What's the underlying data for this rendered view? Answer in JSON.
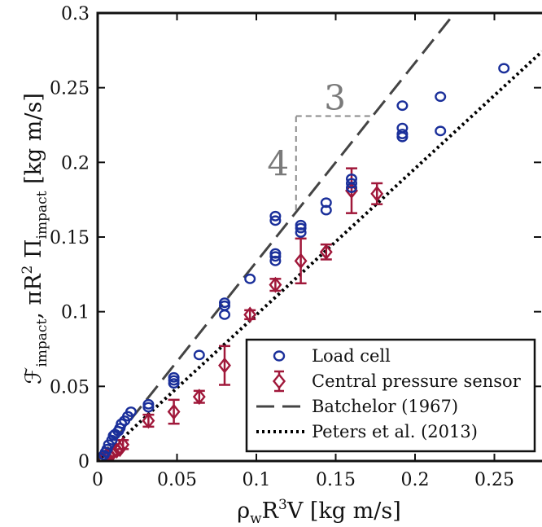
{
  "chart_data": {
    "type": "scatter",
    "title": "",
    "xlabel_parts": {
      "base": "ρ",
      "sub": "w",
      "mid": "R",
      "sup": "3",
      "tail": "V",
      "unit": "[kg m/s]"
    },
    "ylabel_parts": {
      "f": "ℱ",
      "f_sub": "impact",
      "comma": ", π",
      "r": "R",
      "r_sup": "2",
      "pi_cap": " Π",
      "pi_sub": "impact",
      "unit": "[kg m/s]"
    },
    "xlim": [
      0,
      0.28
    ],
    "ylim": [
      0,
      0.3
    ],
    "xticks": [
      0,
      0.05,
      0.1,
      0.15,
      0.2,
      0.25
    ],
    "xtick_labels": [
      "0",
      "0.05",
      "0.1",
      "0.15",
      "0.2",
      "0.25"
    ],
    "yticks": [
      0,
      0.05,
      0.1,
      0.15,
      0.2,
      0.25,
      0.3
    ],
    "ytick_labels": [
      "0",
      "0.05",
      "0.1",
      "0.15",
      "0.2",
      "0.25",
      "0.3"
    ],
    "grid": false,
    "legend_position": "bottom-right",
    "series": [
      {
        "name": "Load cell",
        "kind": "scatter",
        "marker": "circle",
        "color": "#1a2f9a",
        "points": [
          [
            0.002,
            0.002
          ],
          [
            0.004,
            0.004
          ],
          [
            0.005,
            0.006
          ],
          [
            0.006,
            0.008
          ],
          [
            0.007,
            0.011
          ],
          [
            0.009,
            0.014
          ],
          [
            0.01,
            0.017
          ],
          [
            0.011,
            0.018
          ],
          [
            0.013,
            0.02
          ],
          [
            0.014,
            0.022
          ],
          [
            0.015,
            0.025
          ],
          [
            0.017,
            0.027
          ],
          [
            0.019,
            0.03
          ],
          [
            0.021,
            0.033
          ],
          [
            0.032,
            0.036
          ],
          [
            0.032,
            0.038
          ],
          [
            0.048,
            0.052
          ],
          [
            0.048,
            0.054
          ],
          [
            0.048,
            0.056
          ],
          [
            0.064,
            0.071
          ],
          [
            0.08,
            0.098
          ],
          [
            0.08,
            0.104
          ],
          [
            0.08,
            0.106
          ],
          [
            0.096,
            0.122
          ],
          [
            0.112,
            0.134
          ],
          [
            0.112,
            0.137
          ],
          [
            0.112,
            0.139
          ],
          [
            0.112,
            0.161
          ],
          [
            0.112,
            0.164
          ],
          [
            0.128,
            0.153
          ],
          [
            0.128,
            0.156
          ],
          [
            0.128,
            0.158
          ],
          [
            0.144,
            0.168
          ],
          [
            0.144,
            0.173
          ],
          [
            0.16,
            0.183
          ],
          [
            0.16,
            0.186
          ],
          [
            0.16,
            0.189
          ],
          [
            0.192,
            0.217
          ],
          [
            0.192,
            0.219
          ],
          [
            0.192,
            0.223
          ],
          [
            0.192,
            0.238
          ],
          [
            0.216,
            0.221
          ],
          [
            0.216,
            0.244
          ],
          [
            0.256,
            0.263
          ]
        ]
      },
      {
        "name": "Central pressure sensor",
        "kind": "scatter_errorbar",
        "marker": "diamond",
        "color": "#a0183a",
        "points": [
          [
            0.003,
            0.002,
            0.001
          ],
          [
            0.005,
            0.003,
            0.001
          ],
          [
            0.007,
            0.004,
            0.001
          ],
          [
            0.009,
            0.005,
            0.001
          ],
          [
            0.01,
            0.006,
            0.002
          ],
          [
            0.012,
            0.007,
            0.002
          ],
          [
            0.014,
            0.008,
            0.002
          ],
          [
            0.016,
            0.011,
            0.003
          ],
          [
            0.032,
            0.027,
            0.004
          ],
          [
            0.048,
            0.033,
            0.008
          ],
          [
            0.064,
            0.043,
            0.004
          ],
          [
            0.08,
            0.064,
            0.013
          ],
          [
            0.096,
            0.098,
            0.003
          ],
          [
            0.112,
            0.118,
            0.004
          ],
          [
            0.128,
            0.134,
            0.015
          ],
          [
            0.144,
            0.14,
            0.005
          ],
          [
            0.16,
            0.181,
            0.015
          ],
          [
            0.176,
            0.179,
            0.007
          ]
        ]
      },
      {
        "name": "Batchelor (1967)",
        "kind": "line",
        "style": "dashed",
        "color": "#444444",
        "slope": 1.3333,
        "x_range": [
          0,
          0.225
        ]
      },
      {
        "name": "Peters et al. (2013)",
        "kind": "line",
        "style": "dotted",
        "color": "#000000",
        "slope": 0.9794,
        "x_range": [
          0,
          0.28
        ]
      }
    ],
    "annotations": [
      {
        "text": "3",
        "meaning": "slope triangle horizontal",
        "x1": 0.125,
        "x2": 0.172,
        "y": 0.231
      },
      {
        "text": "4",
        "meaning": "slope triangle vertical",
        "x": 0.125,
        "y1": 0.168,
        "y2": 0.231
      }
    ]
  }
}
